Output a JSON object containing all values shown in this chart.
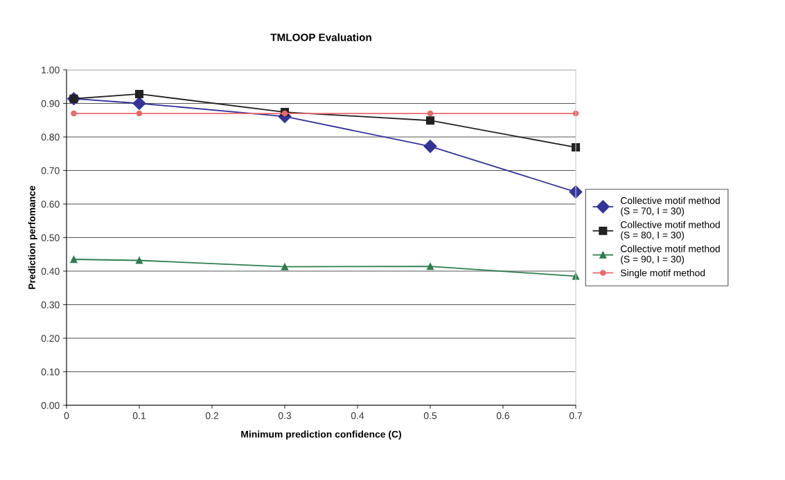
{
  "chart_data": {
    "type": "line",
    "title": "TMLOOP Evaluation",
    "xlabel": "Minimum prediction confidence (C)",
    "ylabel": "Prediction perfomance",
    "x": [
      0.01,
      0.1,
      0.3,
      0.5,
      0.7
    ],
    "series": [
      {
        "name": "Collective motif method\n(S = 70, I = 30)",
        "color": "#333399",
        "marker": "diamond",
        "values": [
          0.914,
          0.9,
          0.861,
          0.772,
          0.636
        ]
      },
      {
        "name": "Collective motif method\n(S = 80, I = 30)",
        "color": "#222222",
        "marker": "square",
        "values": [
          0.914,
          0.928,
          0.874,
          0.849,
          0.769
        ]
      },
      {
        "name": "Collective motif method\n(S = 90, I = 30)",
        "color": "#2e7d4f",
        "marker": "triangle",
        "values": [
          0.435,
          0.432,
          0.413,
          0.414,
          0.385
        ]
      },
      {
        "name": "Single motif method",
        "color": "#e8696b",
        "marker": "circle",
        "values": [
          0.87,
          0.87,
          0.87,
          0.87,
          0.87
        ]
      }
    ],
    "xlim": [
      0,
      0.7
    ],
    "xticks": [
      {
        "value": 0,
        "label": "0"
      },
      0.1,
      0.2,
      0.3,
      0.4,
      0.5,
      0.6,
      0.7
    ],
    "ylim": [
      0,
      1
    ],
    "yticks": [
      {
        "value": 0,
        "label": "0.00"
      },
      {
        "value": 0.1,
        "label": "0.10"
      },
      {
        "value": 0.2,
        "label": "0.20"
      },
      {
        "value": 0.3,
        "label": "0.30"
      },
      {
        "value": 0.4,
        "label": "0.40"
      },
      {
        "value": 0.5,
        "label": "0.50"
      },
      {
        "value": 0.6,
        "label": "0.60"
      },
      {
        "value": 0.7,
        "label": "0.70"
      },
      {
        "value": 0.8,
        "label": "0.80"
      },
      {
        "value": 0.9,
        "label": "0.90"
      },
      {
        "value": 1,
        "label": "1.00"
      }
    ],
    "grid": "y",
    "legend": "right",
    "line_style": "solid"
  }
}
